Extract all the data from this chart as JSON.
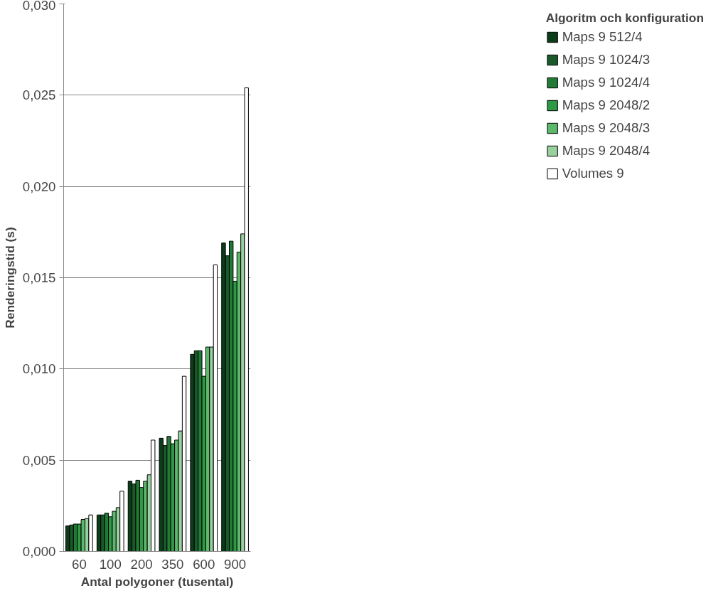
{
  "chart_data": {
    "type": "bar",
    "xlabel": "Antal polygoner (tusental)",
    "ylabel": "Renderingstid (s)",
    "legend_title": "Algoritm och konfiguration",
    "categories": [
      "60",
      "100",
      "200",
      "350",
      "600",
      "900"
    ],
    "series": [
      {
        "name": "Maps 9 512/4",
        "color": "#0b3d1b",
        "values": [
          0.0014,
          0.002,
          0.00385,
          0.0062,
          0.0108,
          0.0169
        ]
      },
      {
        "name": "Maps 9 1024/3",
        "color": "#1a5a2a",
        "values": [
          0.00145,
          0.002,
          0.0037,
          0.0058,
          0.011,
          0.0162
        ]
      },
      {
        "name": "Maps 9 1024/4",
        "color": "#217a35",
        "values": [
          0.0015,
          0.0021,
          0.0039,
          0.0063,
          0.011,
          0.017
        ]
      },
      {
        "name": "Maps 9 2048/2",
        "color": "#2e9a45",
        "values": [
          0.0015,
          0.0019,
          0.0035,
          0.0059,
          0.0096,
          0.0148
        ]
      },
      {
        "name": "Maps 9 2048/3",
        "color": "#5cb86a",
        "values": [
          0.00175,
          0.0022,
          0.00385,
          0.0061,
          0.0112,
          0.0164
        ]
      },
      {
        "name": "Maps 9 2048/4",
        "color": "#98d09e",
        "values": [
          0.0018,
          0.0024,
          0.0042,
          0.0066,
          0.0112,
          0.0174
        ]
      },
      {
        "name": "Volumes 9",
        "color": "#ffffff",
        "values": [
          0.002,
          0.0033,
          0.0061,
          0.0096,
          0.0157,
          0.0254
        ]
      }
    ],
    "ylim": [
      0,
      0.03
    ],
    "yticks": [
      {
        "value": 0,
        "label": "0,000"
      },
      {
        "value": 0.005,
        "label": "0,005"
      },
      {
        "value": 0.01,
        "label": "0,010"
      },
      {
        "value": 0.015,
        "label": "0,015"
      },
      {
        "value": 0.02,
        "label": "0,020"
      },
      {
        "value": 0.025,
        "label": "0,025"
      },
      {
        "value": 0.03,
        "label": "0,030"
      }
    ],
    "grid": "y",
    "legend": "right"
  }
}
